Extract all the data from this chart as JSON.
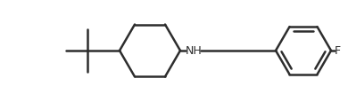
{
  "background": "#ffffff",
  "line_color": "#2d2d2d",
  "line_width": 1.8,
  "font_size_label": 9,
  "nh_label": "NH",
  "f_label": "F",
  "figsize": [
    3.9,
    1.16
  ],
  "dpi": 100
}
